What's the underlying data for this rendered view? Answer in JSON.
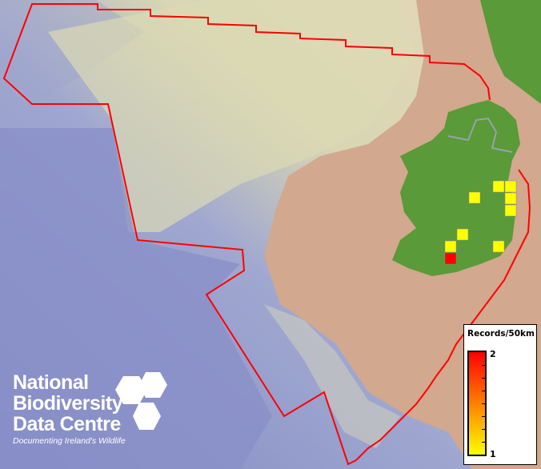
{
  "legend": {
    "title": "Records/50km",
    "max_label": "2",
    "min_label": "1",
    "color_high": "#ff0000",
    "color_low": "#ffff00"
  },
  "logo": {
    "line1": "National",
    "line2": "Biodiversity",
    "line3": "Data Centre",
    "tagline": "Documenting Ireland's Wildlife"
  },
  "records": {
    "cell_values": [
      1,
      1,
      1,
      1,
      1,
      1,
      1,
      2,
      1
    ]
  },
  "colors": {
    "boundary": "#ff0000",
    "land": "#5a9a38",
    "ocean": "#8a94cc",
    "shelf": "#d9d7b0",
    "other_land": "#d2a88e"
  }
}
